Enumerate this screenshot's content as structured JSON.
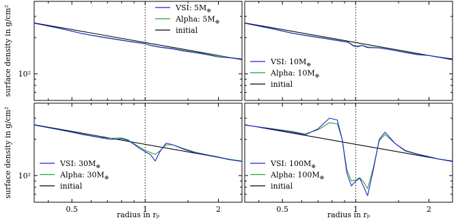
{
  "chart_data": [
    {
      "type": "line",
      "ylabel": "surface density in g/cm²",
      "xlabel": "",
      "x_ticks": [
        "0.5",
        "1",
        "2"
      ],
      "y_ticks": [
        "10²"
      ],
      "xlim": [
        0.35,
        2.5
      ],
      "ylim": [
        60,
        400
      ],
      "yscale": "log",
      "xscale": "log",
      "grid": false,
      "legend_position": "top-right",
      "vline_x": 1,
      "series": [
        {
          "name": "VSI: 5M⊕",
          "color": "#1f1fd6",
          "label_text": "VSI: 5M",
          "label_sub": "⊕",
          "x": [
            0.35,
            0.45,
            0.55,
            0.65,
            0.75,
            0.85,
            0.95,
            1.0,
            1.05,
            1.15,
            1.3,
            1.45,
            1.6,
            1.8,
            2.0,
            2.2,
            2.5
          ],
          "y": [
            263,
            238,
            216,
            203,
            194,
            186,
            180,
            178,
            172,
            166,
            161,
            154,
            150,
            144,
            138,
            136,
            132
          ]
        },
        {
          "name": "Alpha: 5M⊕",
          "color": "#2aa02a",
          "label_text": "Alpha: 5M",
          "label_sub": "⊕",
          "x": [
            0.35,
            0.45,
            0.55,
            0.65,
            0.75,
            0.85,
            0.95,
            1.0,
            1.05,
            1.15,
            1.3,
            1.45,
            1.6,
            1.8,
            2.0,
            2.2,
            2.5
          ],
          "y": [
            263,
            237,
            216,
            204,
            195,
            187,
            181,
            178,
            173,
            167,
            162,
            156,
            151,
            146,
            141,
            137,
            133
          ]
        },
        {
          "name": "initial",
          "color": "#000000",
          "label_text": "initial",
          "label_sub": "",
          "x": [
            0.35,
            2.5
          ],
          "y": [
            265,
            131
          ]
        }
      ]
    },
    {
      "type": "line",
      "ylabel": "",
      "xlabel": "",
      "x_ticks": [
        "0.5",
        "1",
        "2"
      ],
      "y_ticks": [
        "10²"
      ],
      "xlim": [
        0.35,
        2.5
      ],
      "ylim": [
        60,
        400
      ],
      "yscale": "log",
      "xscale": "log",
      "grid": false,
      "legend_position": "bottom-left",
      "vline_x": 1,
      "series": [
        {
          "name": "VSI: 10M⊕",
          "color": "#1f1fd6",
          "label_text": "VSI: 10M",
          "label_sub": "⊕",
          "x": [
            0.35,
            0.45,
            0.55,
            0.65,
            0.75,
            0.85,
            0.93,
            0.98,
            1.02,
            1.06,
            1.12,
            1.25,
            1.4,
            1.6,
            1.8,
            2.0,
            2.2,
            2.5
          ],
          "y": [
            263,
            238,
            217,
            205,
            196,
            188,
            183,
            170,
            168,
            172,
            165,
            164,
            158,
            150,
            144,
            142,
            137,
            133
          ]
        },
        {
          "name": "Alpha: 10M⊕",
          "color": "#2aa02a",
          "label_text": "Alpha: 10M",
          "label_sub": "⊕",
          "x": [
            0.35,
            0.45,
            0.55,
            0.65,
            0.75,
            0.85,
            0.93,
            0.98,
            1.02,
            1.06,
            1.12,
            1.25,
            1.4,
            1.6,
            1.8,
            2.0,
            2.2,
            2.5
          ],
          "y": [
            263,
            237,
            217,
            206,
            197,
            189,
            184,
            172,
            170,
            173,
            167,
            164,
            158,
            151,
            145,
            142,
            138,
            133
          ]
        },
        {
          "name": "initial",
          "color": "#000000",
          "label_text": "initial",
          "label_sub": "",
          "x": [
            0.35,
            2.5
          ],
          "y": [
            265,
            131
          ]
        }
      ]
    },
    {
      "type": "line",
      "ylabel": "surface density in g/cm²",
      "xlabel": "radius in rₚ",
      "x_ticks": [
        "0.5",
        "1",
        "2"
      ],
      "y_ticks": [
        "10²"
      ],
      "xlim": [
        0.35,
        2.5
      ],
      "ylim": [
        60,
        400
      ],
      "yscale": "log",
      "xscale": "log",
      "grid": false,
      "legend_position": "bottom-left",
      "vline_x": 1,
      "series": [
        {
          "name": "VSI: 30M⊕",
          "color": "#1f1fd6",
          "label_text": "VSI: 30M",
          "label_sub": "⊕",
          "x": [
            0.35,
            0.45,
            0.55,
            0.65,
            0.72,
            0.8,
            0.85,
            0.9,
            0.95,
            1.0,
            1.05,
            1.1,
            1.15,
            1.22,
            1.3,
            1.45,
            1.6,
            1.8,
            2.0,
            2.2,
            2.5
          ],
          "y": [
            263,
            240,
            220,
            207,
            200,
            202,
            196,
            182,
            168,
            158,
            150,
            132,
            158,
            186,
            180,
            165,
            155,
            148,
            142,
            136,
            131
          ]
        },
        {
          "name": "Alpha: 30M⊕",
          "color": "#2aa02a",
          "label_text": "Alpha: 30M",
          "label_sub": "⊕",
          "x": [
            0.35,
            0.45,
            0.55,
            0.65,
            0.72,
            0.8,
            0.85,
            0.9,
            0.95,
            1.0,
            1.05,
            1.1,
            1.15,
            1.22,
            1.3,
            1.45,
            1.6,
            1.8,
            2.0,
            2.2,
            2.5
          ],
          "y": [
            263,
            239,
            221,
            208,
            204,
            206,
            198,
            184,
            172,
            162,
            156,
            150,
            160,
            180,
            180,
            167,
            157,
            149,
            143,
            137,
            132
          ]
        },
        {
          "name": "initial",
          "color": "#000000",
          "label_text": "initial",
          "label_sub": "",
          "x": [
            0.35,
            2.5
          ],
          "y": [
            265,
            131
          ]
        }
      ]
    },
    {
      "type": "line",
      "ylabel": "",
      "xlabel": "radius in rₚ",
      "x_ticks": [
        "0.5",
        "1",
        "2"
      ],
      "y_ticks": [
        "10²"
      ],
      "xlim": [
        0.35,
        2.5
      ],
      "ylim": [
        60,
        400
      ],
      "yscale": "log",
      "xscale": "log",
      "grid": false,
      "legend_position": "bottom-left",
      "vline_x": 1,
      "series": [
        {
          "name": "VSI: 100M⊕",
          "color": "#1f1fd6",
          "label_text": "VSI: 100M",
          "label_sub": "⊕",
          "x": [
            0.35,
            0.45,
            0.55,
            0.62,
            0.7,
            0.78,
            0.84,
            0.88,
            0.92,
            0.96,
            1.0,
            1.04,
            1.08,
            1.12,
            1.18,
            1.25,
            1.32,
            1.45,
            1.6,
            1.8,
            2.0,
            2.2,
            2.5
          ],
          "y": [
            263,
            245,
            230,
            218,
            245,
            300,
            290,
            200,
            105,
            82,
            90,
            95,
            80,
            68,
            110,
            200,
            230,
            185,
            160,
            150,
            143,
            137,
            132
          ]
        },
        {
          "name": "Alpha: 100M⊕",
          "color": "#2aa02a",
          "label_text": "Alpha: 100M",
          "label_sub": "⊕",
          "x": [
            0.35,
            0.45,
            0.55,
            0.62,
            0.7,
            0.78,
            0.84,
            0.88,
            0.92,
            0.96,
            1.0,
            1.04,
            1.08,
            1.12,
            1.18,
            1.25,
            1.32,
            1.45,
            1.6,
            1.8,
            2.0,
            2.2,
            2.5
          ],
          "y": [
            263,
            246,
            232,
            222,
            240,
            275,
            270,
            200,
            112,
            90,
            92,
            96,
            88,
            78,
            115,
            195,
            220,
            185,
            162,
            151,
            144,
            137,
            132
          ]
        },
        {
          "name": "initial",
          "color": "#000000",
          "label_text": "initial",
          "label_sub": "",
          "x": [
            0.35,
            2.5
          ],
          "y": [
            265,
            131
          ]
        }
      ]
    }
  ]
}
